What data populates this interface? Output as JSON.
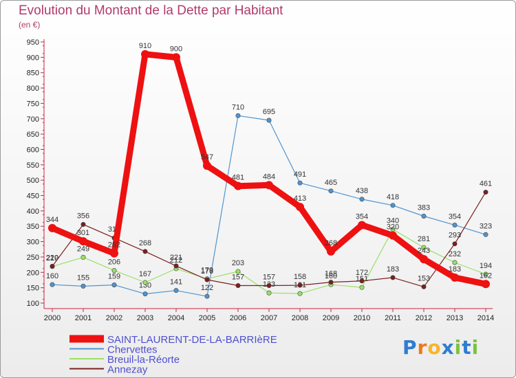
{
  "chart_data": {
    "type": "line",
    "title": "Evolution du Montant de la Dette par Habitant",
    "subtitle": "(en €)",
    "x": [
      "2000",
      "2001",
      "2002",
      "2003",
      "2004",
      "2005",
      "2006",
      "2007",
      "2008",
      "2009",
      "2010",
      "2011",
      "2012",
      "2013",
      "2014"
    ],
    "ylim": [
      100,
      950
    ],
    "yticks": [
      100,
      150,
      200,
      250,
      300,
      350,
      400,
      450,
      500,
      550,
      600,
      650,
      700,
      750,
      800,
      850,
      900,
      950
    ],
    "grid": false,
    "legend_position": "bottom-left",
    "series": [
      {
        "name": "SAINT-LAURENT-DE-LA-BARRIèRE",
        "color": "#ee1111",
        "width": 9,
        "values": [
          344,
          301,
          262,
          910,
          900,
          547,
          481,
          484,
          413,
          268,
          354,
          320,
          243,
          183,
          162
        ]
      },
      {
        "name": "Chervettes",
        "color": "#4f94cf",
        "width": 1.2,
        "values": [
          160,
          155,
          159,
          130,
          141,
          122,
          710,
          695,
          491,
          465,
          438,
          418,
          383,
          354,
          323
        ]
      },
      {
        "name": "Breuil-la-Réorte",
        "color": "#99e066",
        "width": 1.2,
        "values": [
          219,
          249,
          206,
          167,
          212,
          179,
          203,
          133,
          131,
          160,
          151,
          340,
          281,
          232,
          194
        ]
      },
      {
        "name": "Annezay",
        "color": "#7a1f1f",
        "width": 1.2,
        "values": [
          220,
          356,
          312,
          268,
          221,
          176,
          157,
          157,
          158,
          168,
          172,
          183,
          153,
          293,
          461
        ]
      }
    ]
  },
  "logo": {
    "text": "Proxiti",
    "letters": [
      "P",
      "r",
      "o",
      "x",
      "i",
      "t",
      "i"
    ],
    "letter_colors": [
      "#2e7dd1",
      "#f07818",
      "#f7b52a",
      "#2e7dd1",
      "#7cc242",
      "#2e7dd1",
      "#7cc242"
    ]
  }
}
